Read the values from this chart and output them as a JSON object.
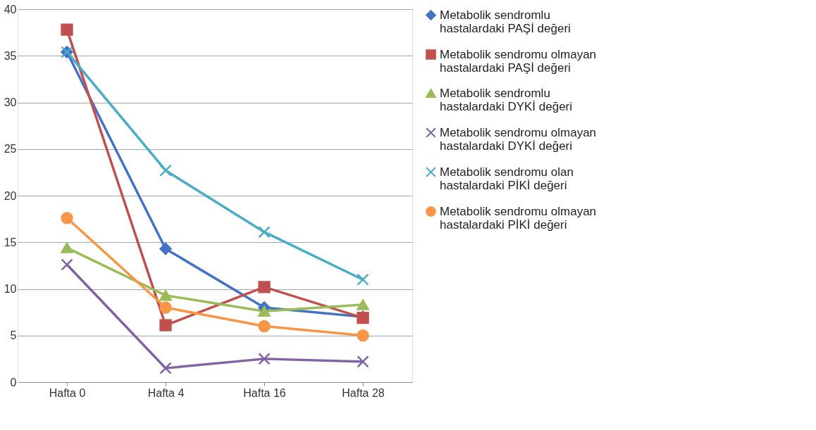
{
  "chart_data": {
    "type": "line",
    "categories": [
      "Hafta 0",
      "Hafta 4",
      "Hafta 16",
      "Hafta 28"
    ],
    "ylim": [
      0,
      40
    ],
    "yticks": [
      0,
      5,
      10,
      15,
      20,
      25,
      30,
      35,
      40
    ],
    "grid": "y",
    "legend": "right",
    "series": [
      {
        "name": "Metabolik sendromlu\nhastalardaki PAŞİ değeri",
        "color": "#4472c4",
        "marker": "diamond",
        "values": [
          35.4,
          14.3,
          8.0,
          7.0
        ]
      },
      {
        "name": "Metabolik sendromu olmayan\nhastalardaki PAŞİ değeri",
        "color": "#c0504d",
        "marker": "square",
        "values": [
          37.8,
          6.1,
          10.2,
          6.9
        ]
      },
      {
        "name": "Metabolik sendromlu\nhastalardaki DYKİ değeri",
        "color": "#9bbb59",
        "marker": "triangle",
        "values": [
          14.4,
          9.3,
          7.6,
          8.3
        ]
      },
      {
        "name": "Metabolik sendromu olmayan\nhastalardaki DYKİ değeri",
        "color": "#8064a2",
        "marker": "cross",
        "values": [
          12.6,
          1.5,
          2.5,
          2.2
        ]
      },
      {
        "name": "Metabolik sendromu olan\nhastalardaki  PİKİ değeri",
        "color": "#4bacc6",
        "marker": "cross",
        "values": [
          35.4,
          22.7,
          16.1,
          11.0
        ]
      },
      {
        "name": "Metabolik sendromu olmayan\nhastalardaki PİKİ değeri",
        "color": "#f79646",
        "marker": "circle",
        "values": [
          17.6,
          8.0,
          6.0,
          5.0
        ]
      }
    ]
  }
}
